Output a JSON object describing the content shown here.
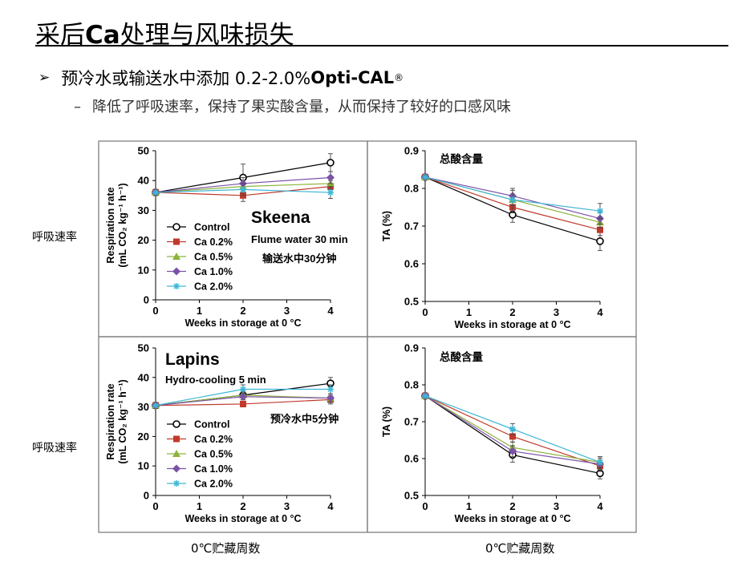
{
  "slide": {
    "title_pre": "采后",
    "title_bold": "Ca",
    "title_post": "处理与风味损失",
    "bullet1_pre": "预冷水或输送水中添加 0.2-2.0%",
    "bullet1_brand": "Opti-CAL",
    "bullet1_reg": "®",
    "bullet2": "降低了呼吸速率，保持了果实酸含量，从而保持了较好的口感风味",
    "bullet2_dash": "–",
    "side_label_top": "呼吸速率",
    "side_label_bottom": "呼吸速率",
    "bottom_label_left": "0℃贮藏周数",
    "bottom_label_right": "0℃贮藏周数"
  },
  "colors": {
    "control": "#000000",
    "ca02": "#c0392b",
    "ca05": "#8db33a",
    "ca10": "#7b52a8",
    "ca20": "#3fb6d6",
    "frame": "#808080"
  },
  "chart_data": [
    {
      "type": "line",
      "cultivar": "Skeena",
      "treatment_en": "Flume water 30 min",
      "treatment_cn": "输送水中30分钟",
      "xlabel": "Weeks in storage at 0 °C",
      "ylabel": "Respiration rate",
      "ylabel_unit": "(mL CO₂ kg⁻¹ h⁻¹)",
      "ylim": [
        0,
        50
      ],
      "yticks": [
        0,
        10,
        20,
        30,
        40,
        50
      ],
      "xlim": [
        0,
        4
      ],
      "xticks": [
        0,
        1,
        2,
        3,
        4
      ],
      "x": [
        0,
        2,
        4
      ],
      "legend": true,
      "series": [
        {
          "name": "Control",
          "marker": "circle",
          "color": "#000000",
          "values": [
            36,
            41,
            46
          ],
          "err": [
            1,
            4.5,
            3
          ]
        },
        {
          "name": "Ca 0.2%",
          "marker": "square",
          "color": "#c0392b",
          "values": [
            36,
            35,
            38
          ],
          "err": [
            1,
            2,
            2
          ]
        },
        {
          "name": "Ca 0.5%",
          "marker": "triangle",
          "color": "#8db33a",
          "values": [
            36,
            38,
            39
          ],
          "err": [
            1,
            2,
            2
          ]
        },
        {
          "name": "Ca 1.0%",
          "marker": "diamond",
          "color": "#7b52a8",
          "values": [
            36,
            39,
            41
          ],
          "err": [
            1,
            2,
            2
          ]
        },
        {
          "name": "Ca 2.0%",
          "marker": "star",
          "color": "#3fb6d6",
          "values": [
            36,
            37,
            36
          ],
          "err": [
            1,
            2,
            2
          ]
        }
      ]
    },
    {
      "type": "line",
      "annotation": "总酸含量",
      "xlabel": "Weeks in storage at 0 °C",
      "ylabel": "TA (%)",
      "ylim": [
        0.5,
        0.9
      ],
      "yticks": [
        0.5,
        0.6,
        0.7,
        0.8,
        0.9
      ],
      "xlim": [
        0,
        4
      ],
      "xticks": [
        0,
        1,
        2,
        3,
        4
      ],
      "x": [
        0,
        2,
        4
      ],
      "legend": false,
      "series": [
        {
          "name": "Control",
          "marker": "circle",
          "color": "#000000",
          "values": [
            0.83,
            0.73,
            0.66
          ],
          "err": [
            0.005,
            0.02,
            0.025
          ]
        },
        {
          "name": "Ca 0.2%",
          "marker": "square",
          "color": "#c0392b",
          "values": [
            0.83,
            0.75,
            0.69
          ],
          "err": [
            0.005,
            0.015,
            0.015
          ]
        },
        {
          "name": "Ca 0.5%",
          "marker": "triangle",
          "color": "#8db33a",
          "values": [
            0.83,
            0.77,
            0.71
          ],
          "err": [
            0.005,
            0.015,
            0.015
          ]
        },
        {
          "name": "Ca 1.0%",
          "marker": "diamond",
          "color": "#7b52a8",
          "values": [
            0.83,
            0.78,
            0.72
          ],
          "err": [
            0.005,
            0.015,
            0.015
          ]
        },
        {
          "name": "Ca 2.0%",
          "marker": "star",
          "color": "#3fb6d6",
          "values": [
            0.83,
            0.77,
            0.74
          ],
          "err": [
            0.005,
            0.03,
            0.02
          ]
        }
      ]
    },
    {
      "type": "line",
      "cultivar": "Lapins",
      "treatment_en": "Hydro-cooling 5 min",
      "treatment_cn": "预冷水中5分钟",
      "xlabel": "Weeks in storage at 0 °C",
      "ylabel": "Respiration rate",
      "ylabel_unit": "(mL CO₂ kg⁻¹ h⁻¹)",
      "ylim": [
        0,
        50
      ],
      "yticks": [
        0,
        10,
        20,
        30,
        40,
        50
      ],
      "xlim": [
        0,
        4
      ],
      "xticks": [
        0,
        1,
        2,
        3,
        4
      ],
      "x": [
        0,
        2,
        4
      ],
      "legend": true,
      "series": [
        {
          "name": "Control",
          "marker": "circle",
          "color": "#000000",
          "values": [
            30.5,
            34,
            38
          ],
          "err": [
            1,
            1.5,
            2
          ]
        },
        {
          "name": "Ca 0.2%",
          "marker": "square",
          "color": "#c0392b",
          "values": [
            30.5,
            31,
            32.5
          ],
          "err": [
            1,
            1,
            1.5
          ]
        },
        {
          "name": "Ca 0.5%",
          "marker": "triangle",
          "color": "#8db33a",
          "values": [
            30.5,
            34,
            33
          ],
          "err": [
            1,
            1,
            1.5
          ]
        },
        {
          "name": "Ca 1.0%",
          "marker": "diamond",
          "color": "#7b52a8",
          "values": [
            30.5,
            33.5,
            33
          ],
          "err": [
            1,
            1,
            1.5
          ]
        },
        {
          "name": "Ca 2.0%",
          "marker": "star",
          "color": "#3fb6d6",
          "values": [
            30.5,
            36,
            36
          ],
          "err": [
            1,
            1.5,
            1.5
          ]
        }
      ]
    },
    {
      "type": "line",
      "annotation": "总酸含量",
      "xlabel": "Weeks in storage at 0 °C",
      "ylabel": "TA (%)",
      "ylim": [
        0.5,
        0.9
      ],
      "yticks": [
        0.5,
        0.6,
        0.7,
        0.8,
        0.9
      ],
      "xlim": [
        0,
        4
      ],
      "xticks": [
        0,
        1,
        2,
        3,
        4
      ],
      "x": [
        0,
        2,
        4
      ],
      "legend": false,
      "series": [
        {
          "name": "Control",
          "marker": "circle",
          "color": "#000000",
          "values": [
            0.77,
            0.61,
            0.56
          ],
          "err": [
            0.005,
            0.02,
            0.015
          ]
        },
        {
          "name": "Ca 0.2%",
          "marker": "square",
          "color": "#c0392b",
          "values": [
            0.77,
            0.66,
            0.58
          ],
          "err": [
            0.005,
            0.015,
            0.015
          ]
        },
        {
          "name": "Ca 0.5%",
          "marker": "triangle",
          "color": "#8db33a",
          "values": [
            0.77,
            0.63,
            0.59
          ],
          "err": [
            0.005,
            0.015,
            0.015
          ]
        },
        {
          "name": "Ca 1.0%",
          "marker": "diamond",
          "color": "#7b52a8",
          "values": [
            0.77,
            0.62,
            0.585
          ],
          "err": [
            0.005,
            0.015,
            0.015
          ]
        },
        {
          "name": "Ca 2.0%",
          "marker": "star",
          "color": "#3fb6d6",
          "values": [
            0.77,
            0.68,
            0.59
          ],
          "err": [
            0.005,
            0.015,
            0.015
          ]
        }
      ]
    }
  ]
}
